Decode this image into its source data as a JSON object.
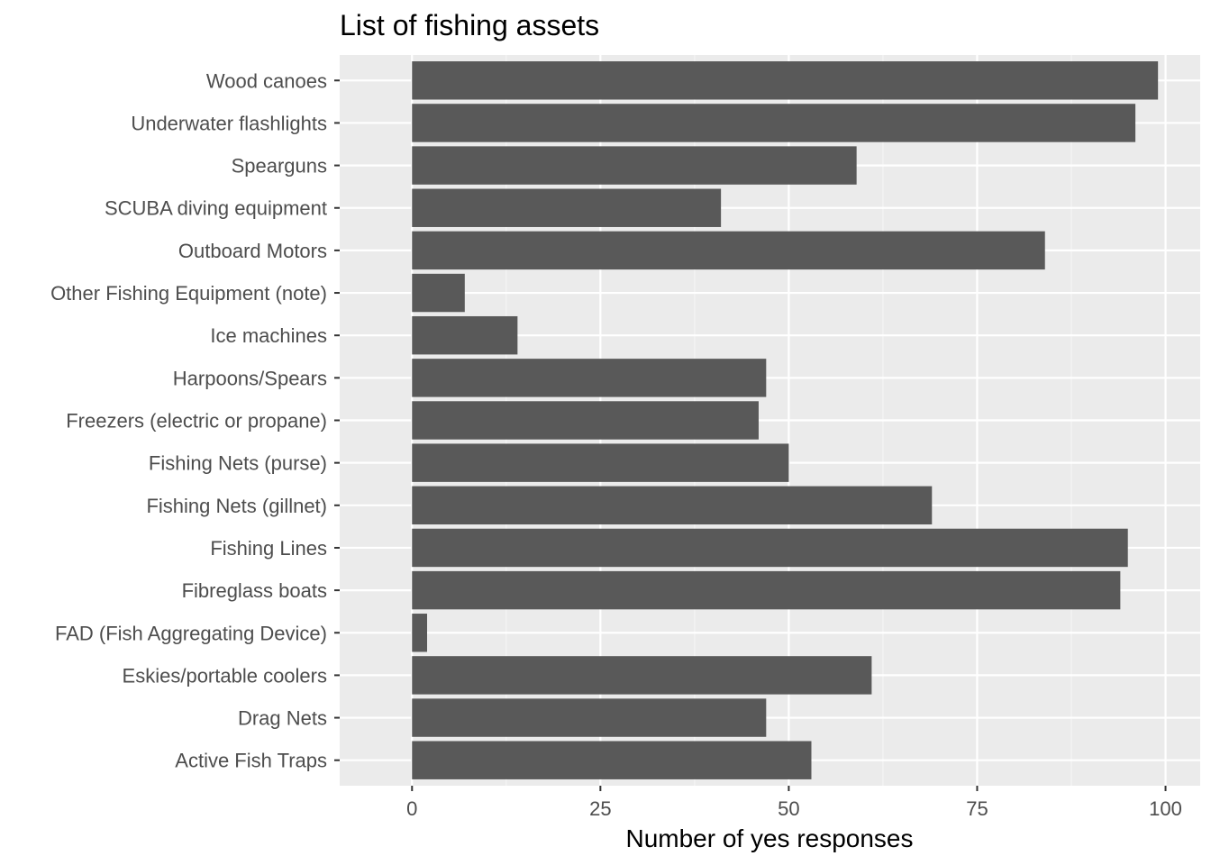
{
  "chart_data": {
    "type": "bar",
    "orientation": "horizontal",
    "title": "List of fishing assets",
    "xlabel": "Number of yes responses",
    "ylabel": "",
    "xlim": [
      -9.6,
      104.6
    ],
    "xticks": [
      0,
      25,
      50,
      75,
      100
    ],
    "grid": true,
    "categories": [
      "Wood canoes",
      "Underwater flashlights",
      "Spearguns",
      "SCUBA diving equipment",
      "Outboard Motors",
      "Other Fishing Equipment (note)",
      "Ice machines",
      "Harpoons/Spears",
      "Freezers (electric or propane)",
      "Fishing Nets (purse)",
      "Fishing Nets (gillnet)",
      "Fishing Lines",
      "Fibreglass boats",
      "FAD (Fish Aggregating Device)",
      "Eskies/portable coolers",
      "Drag Nets",
      "Active Fish Traps"
    ],
    "values": [
      99,
      96,
      59,
      41,
      84,
      7,
      14,
      47,
      46,
      50,
      69,
      95,
      94,
      2,
      61,
      47,
      53
    ],
    "colors": {
      "bar": "#595959",
      "panel": "#ebebeb",
      "grid_major": "#ffffff",
      "grid_minor": "#f5f5f5",
      "tick_text": "#4d4d4d",
      "tick_mark": "#333333"
    }
  }
}
